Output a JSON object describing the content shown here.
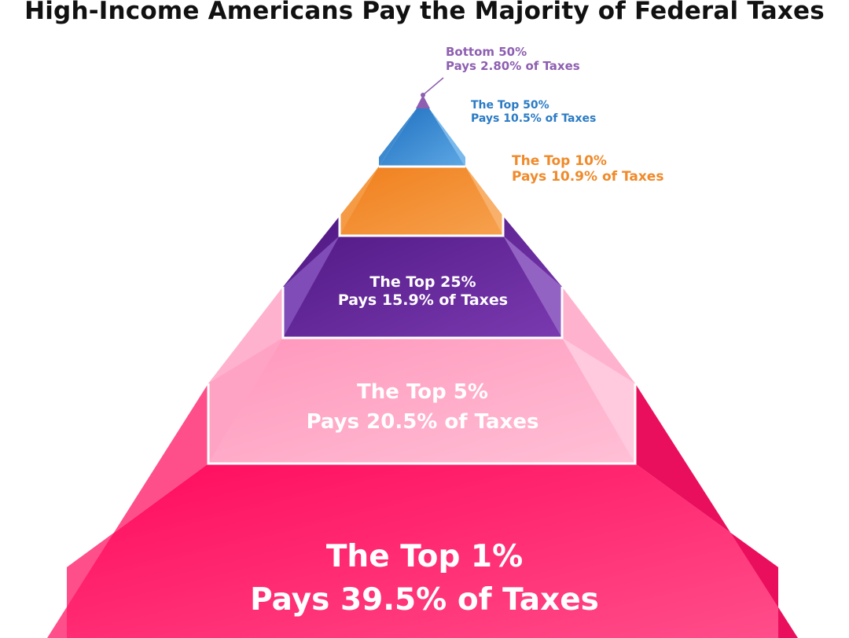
{
  "title": "High-Income Americans Pay the Majority of Federal Taxes",
  "tiers": [
    {
      "group": "Bottom 50%",
      "share": "Pays 2.80% of Taxes",
      "color": "#8e5fb1"
    },
    {
      "group": "The Top 50%",
      "share": "Pays 10.5% of Taxes",
      "color": "#2a7bc4"
    },
    {
      "group": "The Top 10%",
      "share": "Pays 10.9% of Taxes",
      "color": "#f08a2a"
    },
    {
      "group": "The Top 25%",
      "share": "Pays 15.9% of Taxes",
      "color": "#5a1d8c"
    },
    {
      "group": "The Top 5%",
      "share": "Pays 20.5% of Taxes",
      "color": "#ff9ec0"
    },
    {
      "group": "The Top 1%",
      "share": "Pays 39.5% of Taxes",
      "color": "#ff0f62"
    }
  ]
}
